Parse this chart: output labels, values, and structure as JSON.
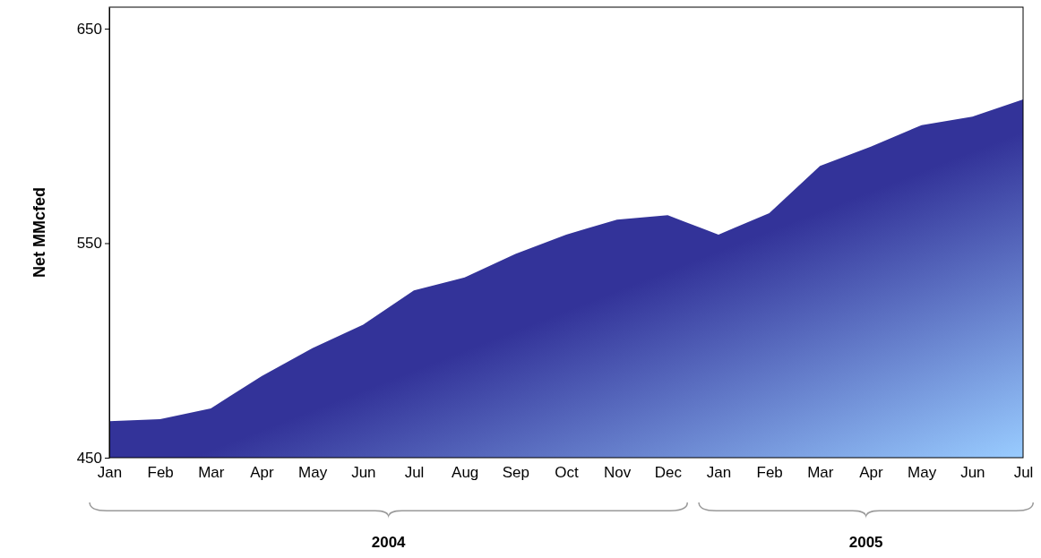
{
  "chart_data": {
    "type": "area",
    "ylabel": "Net MMcfed",
    "categories": [
      "Jan",
      "Feb",
      "Mar",
      "Apr",
      "May",
      "Jun",
      "Jul",
      "Aug",
      "Sep",
      "Oct",
      "Nov",
      "Dec",
      "Jan",
      "Feb",
      "Mar",
      "Apr",
      "May",
      "Jun",
      "Jul"
    ],
    "series": [
      {
        "color": "#333399",
        "values": [
          467,
          468,
          473,
          488,
          501,
          512,
          528,
          534,
          545,
          554,
          561,
          563,
          554,
          564,
          586,
          595,
          605,
          609,
          617
        ]
      }
    ],
    "ylim": [
      450,
      660
    ],
    "yticks": [
      450,
      550,
      650
    ],
    "grid": false,
    "annotations": [
      "2004",
      "2005"
    ]
  }
}
